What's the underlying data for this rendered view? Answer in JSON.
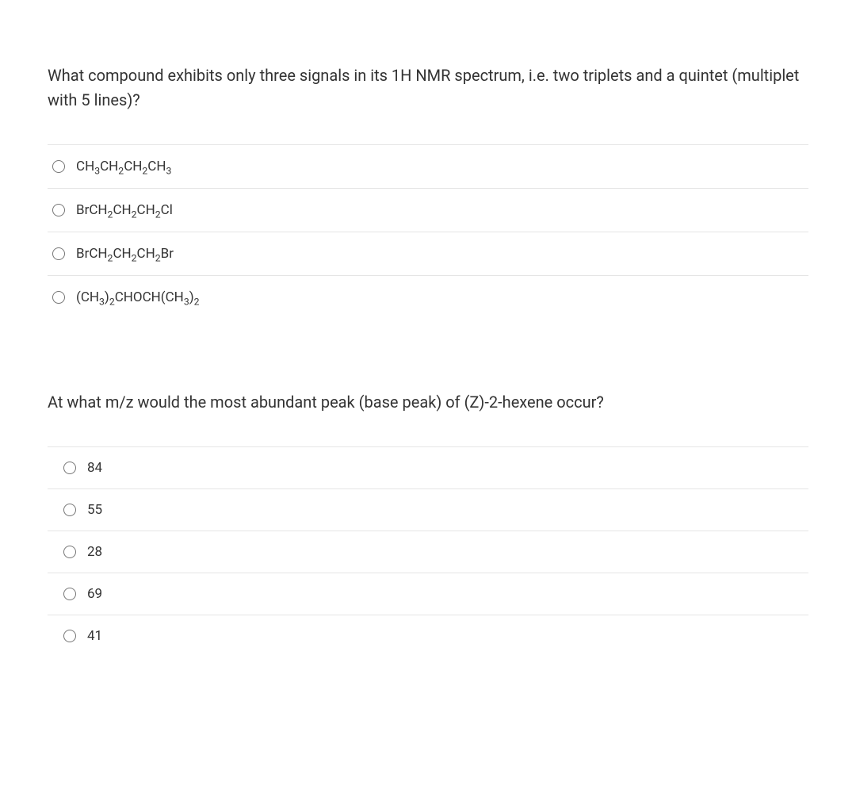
{
  "question1": {
    "text": "What compound exhibits only three signals in its 1H NMR spectrum, i.e. two triplets and a quintet (multiplet with 5 lines)?",
    "options": [
      {
        "type": "formula",
        "segments": [
          {
            "text": "CH",
            "sub": "3"
          },
          {
            "text": "CH",
            "sub": "2"
          },
          {
            "text": "CH",
            "sub": "2"
          },
          {
            "text": "CH",
            "sub": "3"
          }
        ]
      },
      {
        "type": "formula",
        "segments": [
          {
            "text": "BrCH",
            "sub": "2"
          },
          {
            "text": "CH",
            "sub": "2"
          },
          {
            "text": "CH",
            "sub": "2"
          },
          {
            "text": "Cl",
            "sub": ""
          }
        ]
      },
      {
        "type": "formula",
        "segments": [
          {
            "text": "BrCH",
            "sub": "2"
          },
          {
            "text": "CH",
            "sub": "2"
          },
          {
            "text": "CH",
            "sub": "2"
          },
          {
            "text": "Br",
            "sub": ""
          }
        ]
      },
      {
        "type": "formula",
        "segments": [
          {
            "text": "(CH",
            "sub": "3"
          },
          {
            "text": ")",
            "sub": "2"
          },
          {
            "text": "CHOCH(CH",
            "sub": "3"
          },
          {
            "text": ")",
            "sub": "2"
          }
        ]
      }
    ]
  },
  "question2": {
    "text": "At what m/z would the most abundant peak (base peak) of (Z)-2-hexene occur?",
    "options": [
      {
        "type": "text",
        "value": "84"
      },
      {
        "type": "text",
        "value": "55"
      },
      {
        "type": "text",
        "value": "28"
      },
      {
        "type": "text",
        "value": "69"
      },
      {
        "type": "text",
        "value": "41"
      }
    ]
  },
  "styling": {
    "background_color": "#ffffff",
    "text_color": "#333333",
    "border_color": "#e5e5e5",
    "question_fontsize": 20,
    "option_fontsize": 17
  }
}
